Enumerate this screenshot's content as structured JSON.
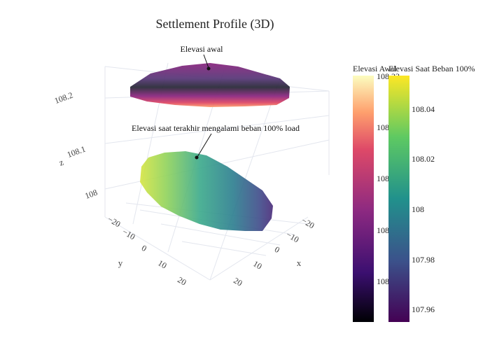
{
  "chart_data": {
    "type": "surface3d",
    "title": "Settlement Profile (3D)",
    "axes": {
      "x": {
        "label": "x",
        "ticks": [
          "−20",
          "−10",
          "0",
          "10",
          "20"
        ],
        "range": [
          -25,
          25
        ]
      },
      "y": {
        "label": "y",
        "ticks": [
          "−20",
          "−10",
          "0",
          "10",
          "20"
        ],
        "range": [
          -25,
          25
        ]
      },
      "z": {
        "label": "z",
        "ticks": [
          "108",
          "108.1",
          "108.2"
        ],
        "range": [
          107.94,
          108.25
        ]
      }
    },
    "series": [
      {
        "name": "Elevasi Awal",
        "colorscale": "magma",
        "z_top": 108.23,
        "z_bottom": 108.19,
        "annotation": "Elevasi awal"
      },
      {
        "name": "Elevasi Saat Beban 100%",
        "colorscale": "viridis",
        "z_min": 107.955,
        "z_max": 108.05,
        "annotation": "Elevasi saat terakhir mengalami beban 100% load"
      }
    ],
    "colorbars": [
      {
        "title": "Elevasi Awal",
        "ticks": [
          "108.23",
          "108",
          "108",
          "108",
          "108"
        ]
      },
      {
        "title": "Elevasi Saat Beban 100%",
        "ticks": [
          "108.04",
          "108.02",
          "108",
          "107.98",
          "107.96"
        ]
      }
    ],
    "colors": {
      "magma": [
        "#000004",
        "#3b0f70",
        "#8c2981",
        "#de4968",
        "#fe9f6d",
        "#fcfdbf"
      ],
      "viridis": [
        "#440154",
        "#3b528b",
        "#21918c",
        "#5ec962",
        "#fde725"
      ]
    }
  }
}
